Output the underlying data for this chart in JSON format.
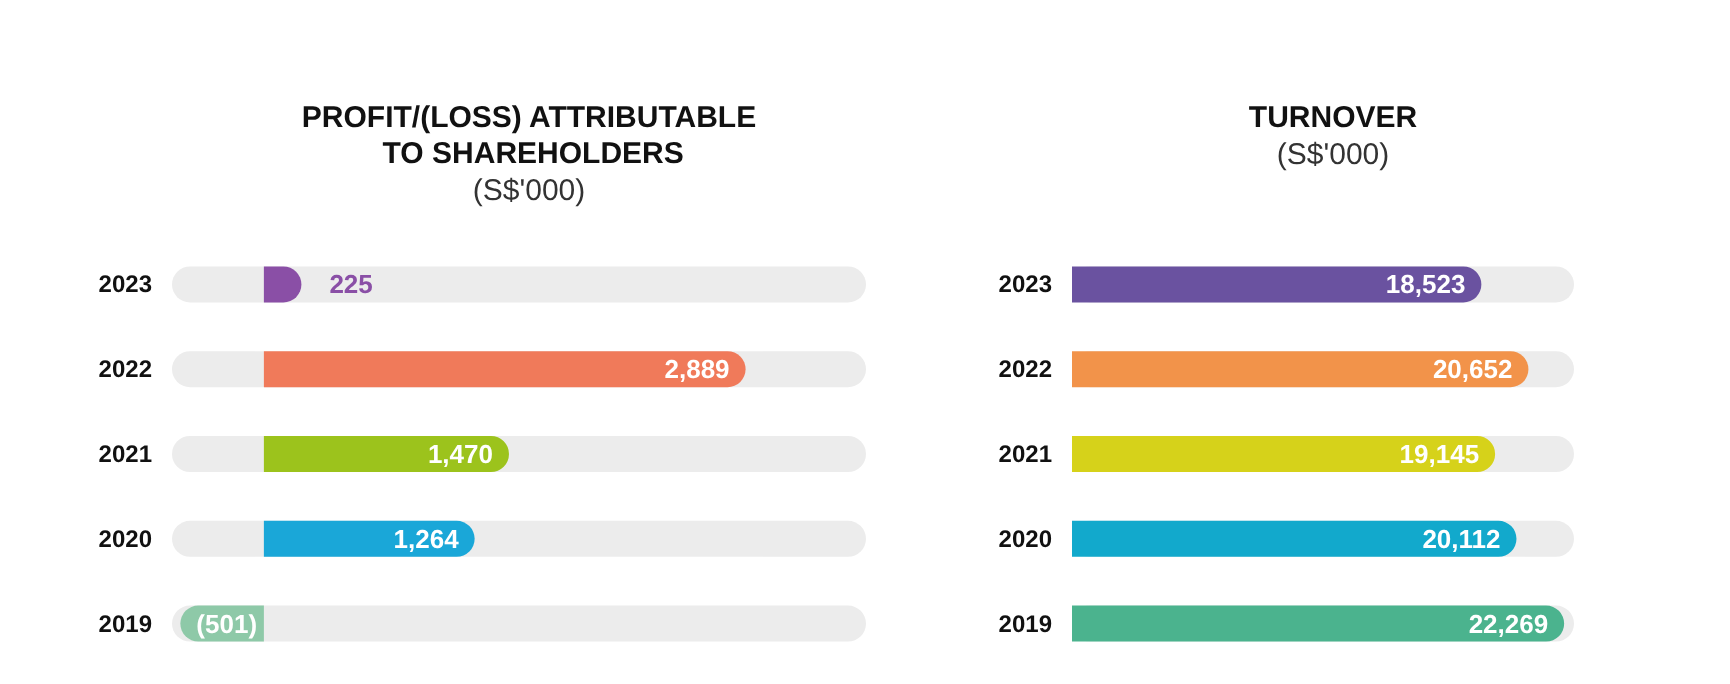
{
  "chart_data": [
    {
      "type": "bar",
      "orientation": "horizontal",
      "title": "PROFIT/(LOSS) ATTRIBUTABLE TO SHAREHOLDERS",
      "subtitle": "(S$'000)",
      "categories": [
        "2023",
        "2022",
        "2021",
        "2020",
        "2019"
      ],
      "values": [
        225,
        2889,
        1470,
        1264,
        -501
      ],
      "value_labels": [
        "225",
        "2,889",
        "1,470",
        "1,264",
        "(501)"
      ],
      "colors": [
        "#8a4fa6",
        "#f07a5a",
        "#9cc31c",
        "#1aa7d8",
        "#8ec9a8"
      ],
      "grid": false
    },
    {
      "type": "bar",
      "orientation": "horizontal",
      "title": "TURNOVER",
      "subtitle": "(S$'000)",
      "categories": [
        "2023",
        "2022",
        "2021",
        "2020",
        "2019"
      ],
      "values": [
        18523,
        20652,
        19145,
        20112,
        22269
      ],
      "value_labels": [
        "18,523",
        "20,652",
        "19,145",
        "20,112",
        "22,269"
      ],
      "colors": [
        "#6a52a0",
        "#f2934a",
        "#d6d21a",
        "#12a9cc",
        "#4bb38e"
      ],
      "grid": false
    }
  ]
}
